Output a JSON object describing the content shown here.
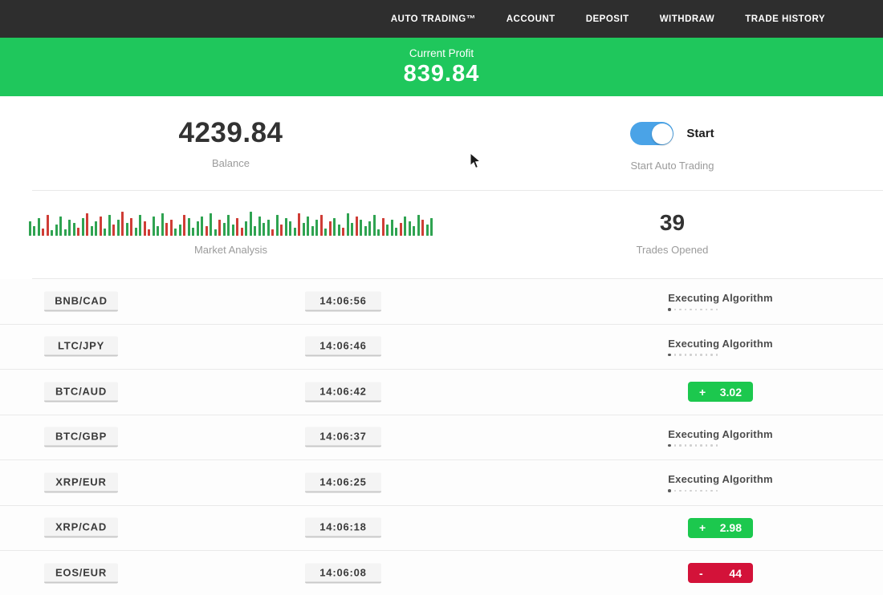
{
  "nav": {
    "items": [
      {
        "label": "AUTO TRADING™"
      },
      {
        "label": "ACCOUNT"
      },
      {
        "label": "DEPOSIT"
      },
      {
        "label": "WITHDRAW"
      },
      {
        "label": "TRADE HISTORY"
      }
    ]
  },
  "profit_banner": {
    "label": "Current Profit",
    "value": "839.84",
    "bg_color": "#1fc75c"
  },
  "stats": {
    "balance": {
      "value": "4239.84",
      "label": "Balance"
    },
    "auto_trading": {
      "toggle_state": "on",
      "toggle_label": "Start",
      "label": "Start Auto Trading",
      "toggle_color": "#4aa3e7"
    },
    "market_analysis": {
      "label": "Market Analysis"
    },
    "trades_opened": {
      "value": "39",
      "label": "Trades Opened"
    }
  },
  "trades_section": {
    "executing_label": "Executing Algorithm"
  },
  "trades": [
    {
      "pair": "BNB/CAD",
      "time": "14:06:56",
      "status": "executing",
      "sign": "",
      "value": ""
    },
    {
      "pair": "LTC/JPY",
      "time": "14:06:46",
      "status": "executing",
      "sign": "",
      "value": ""
    },
    {
      "pair": "BTC/AUD",
      "time": "14:06:42",
      "status": "profit",
      "sign": "+",
      "value": "3.02"
    },
    {
      "pair": "BTC/GBP",
      "time": "14:06:37",
      "status": "executing",
      "sign": "",
      "value": ""
    },
    {
      "pair": "XRP/EUR",
      "time": "14:06:25",
      "status": "executing",
      "sign": "",
      "value": ""
    },
    {
      "pair": "XRP/CAD",
      "time": "14:06:18",
      "status": "profit",
      "sign": "+",
      "value": "2.98"
    },
    {
      "pair": "EOS/EUR",
      "time": "14:06:08",
      "status": "loss",
      "sign": "-",
      "value": "44"
    }
  ],
  "colors": {
    "nav_bg": "#2e2e2e",
    "banner_green": "#1fc75c",
    "badge_green": "#1cc84e",
    "badge_red": "#d31239",
    "toggle_blue": "#4aa3e7",
    "muted_text": "#9b9b9b",
    "dark_text": "#323232"
  },
  "chart_data": {
    "type": "bar",
    "title": "Market Analysis",
    "note": "decorative market-noise volume bars, heights in px, c = green/red",
    "bar_colors": {
      "g": "#2fa351",
      "r": "#cf3d36"
    },
    "bars": [
      [
        18,
        "g"
      ],
      [
        12,
        "g"
      ],
      [
        22,
        "g"
      ],
      [
        9,
        "r"
      ],
      [
        26,
        "r"
      ],
      [
        7,
        "g"
      ],
      [
        14,
        "g"
      ],
      [
        24,
        "g"
      ],
      [
        8,
        "g"
      ],
      [
        20,
        "g"
      ],
      [
        16,
        "g"
      ],
      [
        10,
        "r"
      ],
      [
        22,
        "g"
      ],
      [
        28,
        "r"
      ],
      [
        12,
        "g"
      ],
      [
        18,
        "g"
      ],
      [
        24,
        "r"
      ],
      [
        9,
        "g"
      ],
      [
        26,
        "g"
      ],
      [
        14,
        "r"
      ],
      [
        20,
        "g"
      ],
      [
        30,
        "r"
      ],
      [
        16,
        "g"
      ],
      [
        22,
        "r"
      ],
      [
        10,
        "g"
      ],
      [
        26,
        "g"
      ],
      [
        18,
        "r"
      ],
      [
        8,
        "r"
      ],
      [
        24,
        "g"
      ],
      [
        12,
        "g"
      ],
      [
        28,
        "g"
      ],
      [
        16,
        "r"
      ],
      [
        20,
        "r"
      ],
      [
        9,
        "g"
      ],
      [
        14,
        "g"
      ],
      [
        26,
        "r"
      ],
      [
        22,
        "g"
      ],
      [
        10,
        "g"
      ],
      [
        18,
        "g"
      ],
      [
        24,
        "g"
      ],
      [
        12,
        "r"
      ],
      [
        28,
        "g"
      ],
      [
        8,
        "g"
      ],
      [
        20,
        "r"
      ],
      [
        16,
        "g"
      ],
      [
        26,
        "g"
      ],
      [
        14,
        "g"
      ],
      [
        22,
        "r"
      ],
      [
        10,
        "r"
      ],
      [
        18,
        "g"
      ],
      [
        30,
        "g"
      ],
      [
        12,
        "g"
      ],
      [
        24,
        "g"
      ],
      [
        16,
        "g"
      ],
      [
        20,
        "g"
      ],
      [
        8,
        "r"
      ],
      [
        26,
        "g"
      ],
      [
        14,
        "r"
      ],
      [
        22,
        "g"
      ],
      [
        18,
        "g"
      ],
      [
        10,
        "g"
      ],
      [
        28,
        "r"
      ],
      [
        16,
        "g"
      ],
      [
        24,
        "g"
      ],
      [
        12,
        "g"
      ],
      [
        20,
        "g"
      ],
      [
        26,
        "r"
      ],
      [
        9,
        "g"
      ],
      [
        18,
        "r"
      ],
      [
        22,
        "g"
      ],
      [
        14,
        "g"
      ],
      [
        10,
        "r"
      ],
      [
        28,
        "g"
      ],
      [
        16,
        "g"
      ],
      [
        24,
        "r"
      ],
      [
        20,
        "g"
      ],
      [
        12,
        "g"
      ],
      [
        18,
        "g"
      ],
      [
        26,
        "g"
      ],
      [
        8,
        "g"
      ],
      [
        22,
        "r"
      ],
      [
        14,
        "g"
      ],
      [
        20,
        "g"
      ],
      [
        10,
        "g"
      ],
      [
        16,
        "r"
      ],
      [
        24,
        "g"
      ],
      [
        18,
        "g"
      ],
      [
        12,
        "g"
      ],
      [
        26,
        "g"
      ],
      [
        20,
        "r"
      ],
      [
        14,
        "g"
      ],
      [
        22,
        "g"
      ]
    ]
  }
}
